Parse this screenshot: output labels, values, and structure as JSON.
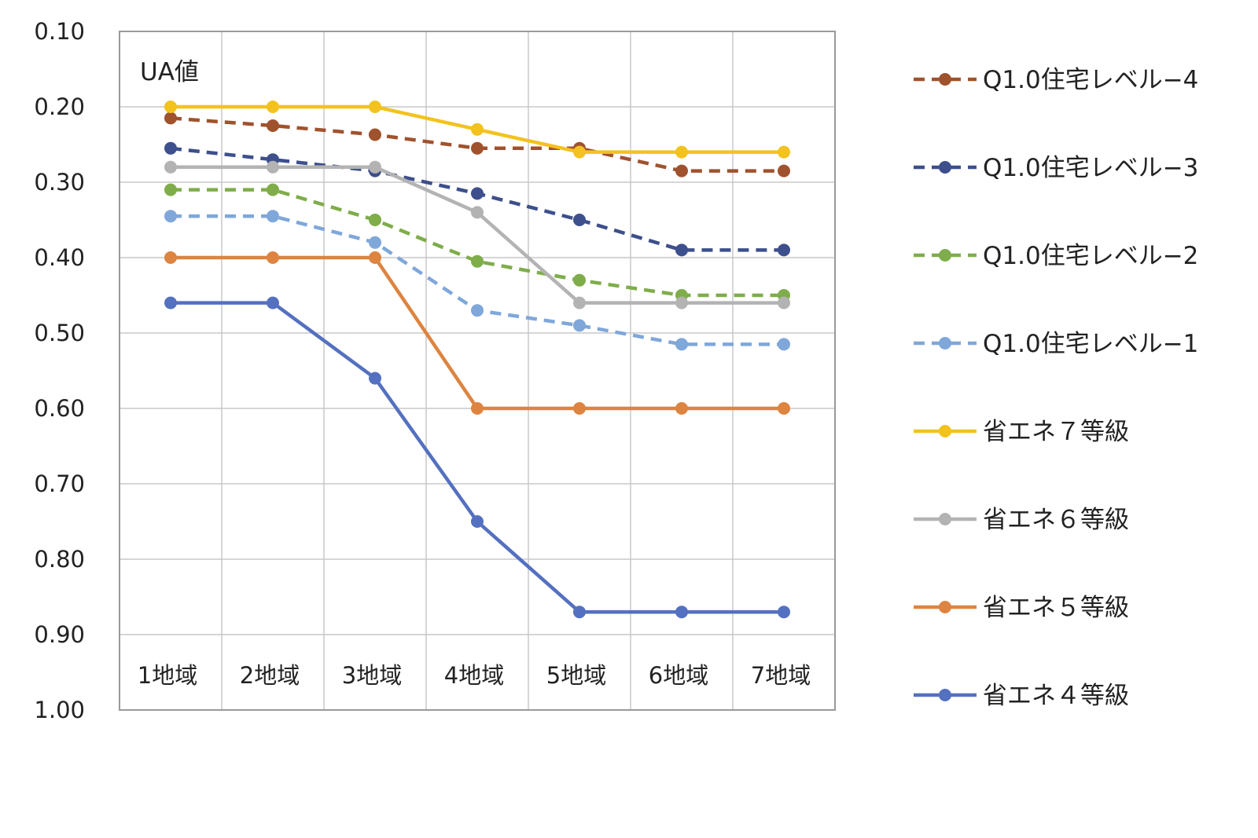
{
  "chart_data": {
    "type": "line",
    "ylabel": "UA値",
    "y_axis_reversed": true,
    "ylim": [
      0.1,
      1.0
    ],
    "yticks": [
      "0.10",
      "0.20",
      "0.30",
      "0.40",
      "0.50",
      "0.60",
      "0.70",
      "0.80",
      "0.90",
      "1.00"
    ],
    "categories": [
      "1地域",
      "2地域",
      "3地域",
      "4地域",
      "5地域",
      "6地域",
      "7地域"
    ],
    "grid": true,
    "legend_position": "right",
    "series": [
      {
        "name": "Q1.0住宅レベル−4",
        "color": "#a0522d",
        "dashed": true,
        "values": [
          0.215,
          0.225,
          0.237,
          0.255,
          0.255,
          0.285,
          0.285
        ]
      },
      {
        "name": "Q1.0住宅レベル−3",
        "color": "#3d4f8c",
        "dashed": true,
        "values": [
          0.255,
          0.27,
          0.285,
          0.315,
          0.35,
          0.39,
          0.39
        ]
      },
      {
        "name": "Q1.0住宅レベル−2",
        "color": "#7fad4a",
        "dashed": true,
        "values": [
          0.31,
          0.31,
          0.35,
          0.405,
          0.43,
          0.45,
          0.45
        ]
      },
      {
        "name": "Q1.0住宅レベル−1",
        "color": "#7fa7da",
        "dashed": true,
        "values": [
          0.345,
          0.345,
          0.38,
          0.47,
          0.49,
          0.515,
          0.515
        ]
      },
      {
        "name": "省エネ７等級",
        "color": "#f3c21f",
        "dashed": false,
        "values": [
          0.2,
          0.2,
          0.2,
          0.23,
          0.26,
          0.26,
          0.26
        ]
      },
      {
        "name": "省エネ６等級",
        "color": "#b3b3b3",
        "dashed": false,
        "values": [
          0.28,
          0.28,
          0.28,
          0.34,
          0.46,
          0.46,
          0.46
        ]
      },
      {
        "name": "省エネ５等級",
        "color": "#dd8440",
        "dashed": false,
        "values": [
          0.4,
          0.4,
          0.4,
          0.6,
          0.6,
          0.6,
          0.6
        ]
      },
      {
        "name": "省エネ４等級",
        "color": "#5470c0",
        "dashed": false,
        "values": [
          0.46,
          0.46,
          0.56,
          0.75,
          0.87,
          0.87,
          0.87
        ]
      }
    ]
  }
}
